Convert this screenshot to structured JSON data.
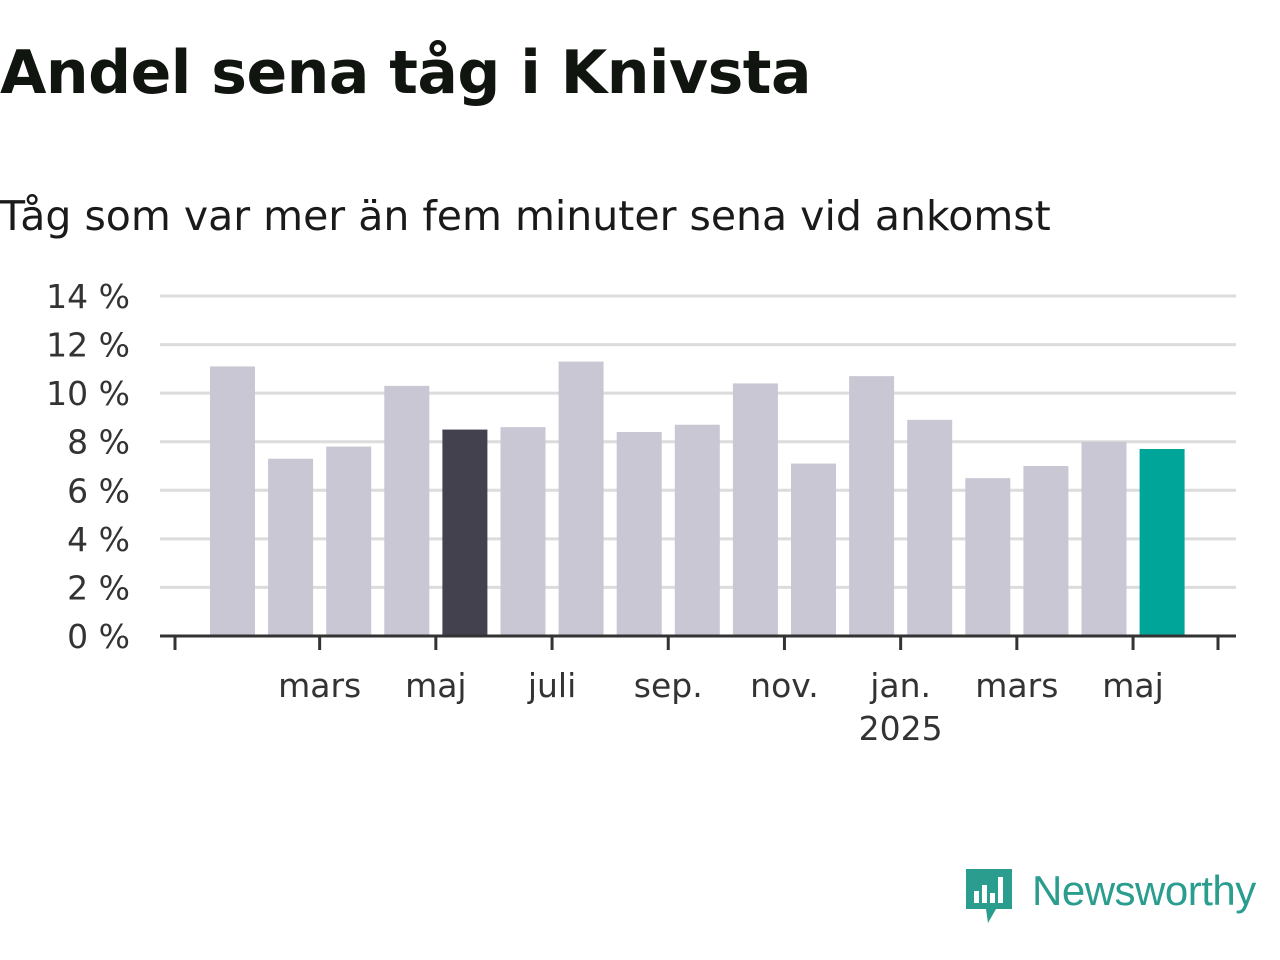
{
  "chart_data": {
    "type": "bar",
    "title": "Andel sena tåg i Knivsta",
    "subtitle": "Tåg som var mer än fem minuter sena vid ankomst",
    "y_ticks": [
      "0 %",
      "2 %",
      "4 %",
      "6 %",
      "8 %",
      "10 %",
      "12 %",
      "14 %"
    ],
    "ylim": [
      0,
      14
    ],
    "grid": true,
    "x_labels": [
      {
        "after_index": 1,
        "label": "mars",
        "sublabel": ""
      },
      {
        "after_index": 3,
        "label": "maj",
        "sublabel": ""
      },
      {
        "after_index": 5,
        "label": "juli",
        "sublabel": ""
      },
      {
        "after_index": 7,
        "label": "sep.",
        "sublabel": ""
      },
      {
        "after_index": 9,
        "label": "nov.",
        "sublabel": ""
      },
      {
        "after_index": 11,
        "label": "jan.",
        "sublabel": "2025"
      },
      {
        "after_index": 13,
        "label": "mars",
        "sublabel": ""
      },
      {
        "after_index": 15,
        "label": "maj",
        "sublabel": ""
      }
    ],
    "values": [
      11.1,
      7.3,
      7.8,
      10.3,
      8.5,
      8.6,
      11.3,
      8.4,
      8.7,
      10.4,
      7.1,
      10.7,
      8.9,
      6.5,
      7.0,
      8.0,
      7.7
    ],
    "highlight": {
      "4": "dark",
      "16": "accent"
    },
    "colors": {
      "default": "#c9c7d3",
      "dark": "#43414d",
      "accent": "#00a59a",
      "grid": "#dcdcdc",
      "axis": "#333333"
    }
  },
  "brand": {
    "name": "Newsworthy",
    "color": "#2a9d8f"
  }
}
